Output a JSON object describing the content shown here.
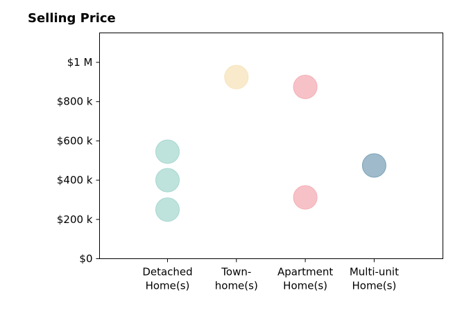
{
  "chart_data": {
    "type": "scatter",
    "title": "Selling Price",
    "xlabel": "",
    "ylabel": "",
    "categories": [
      [
        "Detached",
        "Home(s)"
      ],
      [
        "Town-",
        "home(s)"
      ],
      [
        "Apartment",
        "Home(s)"
      ],
      [
        "Multi-unit",
        "Home(s)"
      ]
    ],
    "ylim": [
      0,
      1150000
    ],
    "yticks": [
      {
        "value": 0,
        "label": "$0"
      },
      {
        "value": 200000,
        "label": "$200 k"
      },
      {
        "value": 400000,
        "label": "$400 k"
      },
      {
        "value": 600000,
        "label": "$600 k"
      },
      {
        "value": 800000,
        "label": "$800 k"
      },
      {
        "value": 1000000,
        "label": "$1 M"
      }
    ],
    "grid": false,
    "series": [
      {
        "category_index": 0,
        "color": "#a8d8d0",
        "values": [
          545000,
          400000,
          250000
        ]
      },
      {
        "category_index": 1,
        "color": "#f7e3bb",
        "values": [
          925000
        ]
      },
      {
        "category_index": 2,
        "color": "#f4aeb4",
        "values": [
          875000,
          312000
        ]
      },
      {
        "category_index": 3,
        "color": "#7ea3b9",
        "values": [
          475000
        ]
      }
    ]
  }
}
